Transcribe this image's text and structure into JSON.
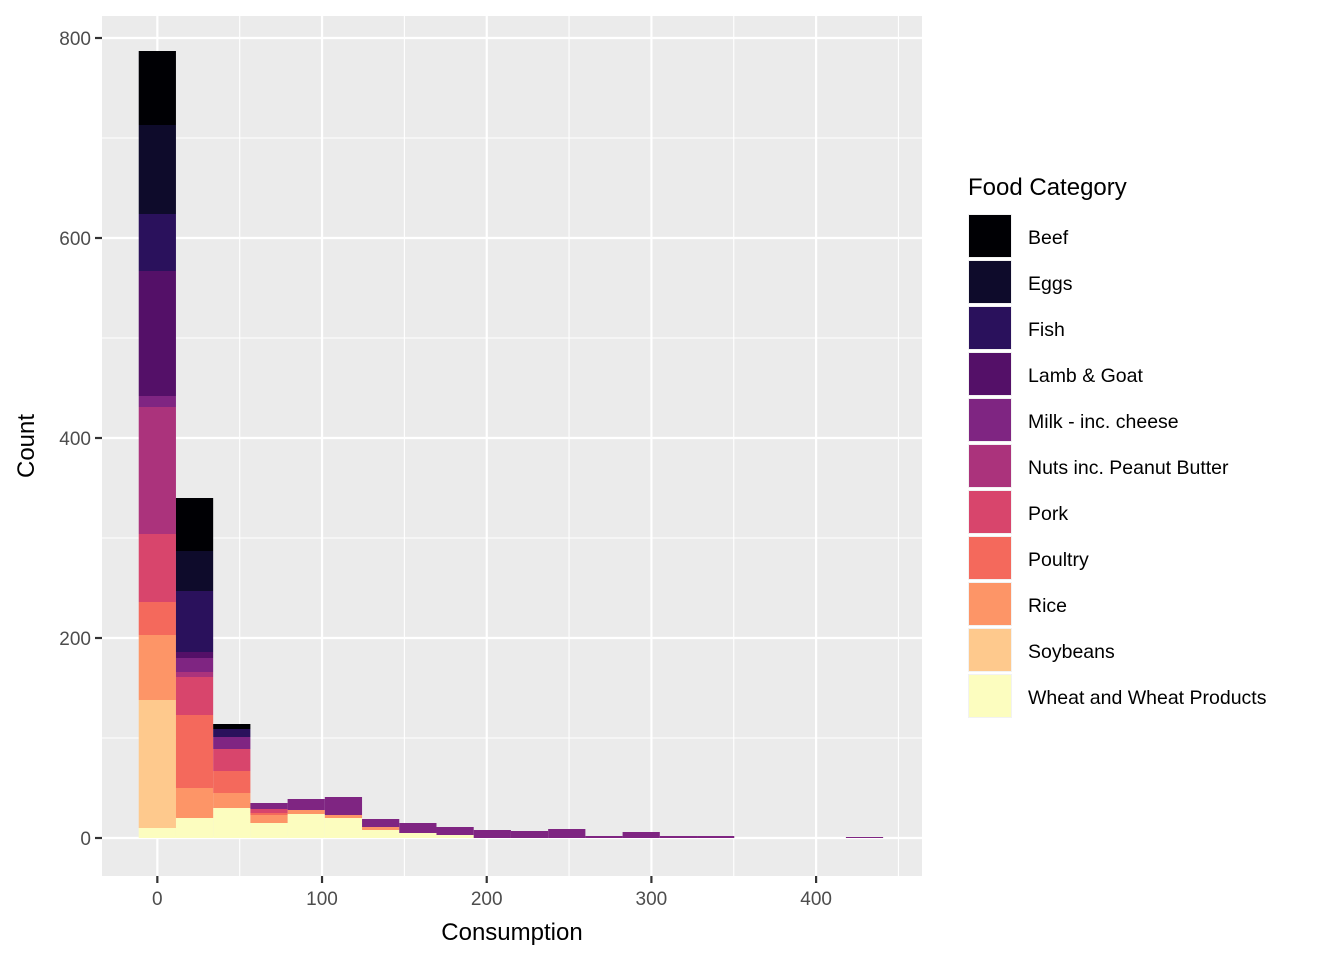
{
  "chart_data": {
    "type": "bar",
    "stacked": true,
    "histogram": true,
    "xlabel": "Consumption",
    "ylabel": "Count",
    "xlim": [
      -33.6,
      464.3
    ],
    "ylim": [
      -38,
      822
    ],
    "x_ticks": [
      0,
      100,
      200,
      300,
      400
    ],
    "y_ticks": [
      0,
      200,
      400,
      600,
      800
    ],
    "grid": true,
    "legend_title": "Food Category",
    "legend_position": "right",
    "bin_edges": [
      -11.3,
      11.3,
      33.9,
      56.5,
      79.1,
      101.7,
      124.3,
      146.9,
      169.5,
      192.1,
      214.7,
      237.3,
      259.9,
      282.5,
      305.1,
      327.7,
      350.3,
      372.9,
      395.5,
      418.1,
      440.7
    ],
    "series": [
      {
        "name": "Wheat and Wheat Products",
        "color": "#FCFDBF",
        "values": [
          10,
          20,
          30,
          15,
          24,
          20,
          8,
          5,
          3,
          0,
          0,
          0,
          0,
          0,
          0,
          0,
          0,
          0,
          0,
          0
        ]
      },
      {
        "name": "Soybeans",
        "color": "#FEC98D",
        "values": [
          128,
          0,
          0,
          0,
          0,
          0,
          0,
          0,
          0,
          0,
          0,
          0,
          0,
          0,
          0,
          0,
          0,
          0,
          0,
          0
        ]
      },
      {
        "name": "Rice",
        "color": "#FD9567",
        "values": [
          65,
          30,
          15,
          8,
          4,
          3,
          3,
          0,
          0,
          0,
          0,
          0,
          0,
          0,
          0,
          0,
          0,
          0,
          0,
          0
        ]
      },
      {
        "name": "Poultry",
        "color": "#F4695C",
        "values": [
          33,
          73,
          22,
          2,
          0,
          0,
          0,
          0,
          0,
          0,
          0,
          0,
          0,
          0,
          0,
          0,
          0,
          0,
          0,
          0
        ]
      },
      {
        "name": "Pork",
        "color": "#D8456C",
        "values": [
          68,
          38,
          22,
          4,
          0,
          0,
          0,
          0,
          0,
          0,
          0,
          0,
          0,
          0,
          0,
          0,
          0,
          0,
          0,
          0
        ]
      },
      {
        "name": "Nuts inc. Peanut Butter",
        "color": "#AB337C",
        "values": [
          127,
          5,
          0,
          0,
          0,
          0,
          0,
          0,
          0,
          0,
          0,
          0,
          0,
          0,
          0,
          0,
          0,
          0,
          0,
          0
        ]
      },
      {
        "name": "Milk - inc. cheese",
        "color": "#7F2582",
        "values": [
          11,
          14,
          12,
          6,
          11,
          18,
          8,
          10,
          8,
          8,
          7,
          9,
          2,
          6,
          2,
          2,
          0,
          0,
          0,
          1
        ]
      },
      {
        "name": "Lamb & Goat",
        "color": "#541068",
        "values": [
          125,
          6,
          0,
          0,
          0,
          0,
          0,
          0,
          0,
          0,
          0,
          0,
          0,
          0,
          0,
          0,
          0,
          0,
          0,
          0
        ]
      },
      {
        "name": "Fish",
        "color": "#2A115C",
        "values": [
          57,
          61,
          8,
          0,
          0,
          0,
          0,
          0,
          0,
          0,
          0,
          0,
          0,
          0,
          0,
          0,
          0,
          0,
          0,
          0
        ]
      },
      {
        "name": "Eggs",
        "color": "#0E0B2B",
        "values": [
          89,
          40,
          0,
          0,
          0,
          0,
          0,
          0,
          0,
          0,
          0,
          0,
          0,
          0,
          0,
          0,
          0,
          0,
          0,
          0
        ]
      },
      {
        "name": "Beef",
        "color": "#000004",
        "values": [
          74,
          53,
          5,
          0,
          0,
          0,
          0,
          0,
          0,
          0,
          0,
          0,
          0,
          0,
          0,
          0,
          0,
          0,
          0,
          0
        ]
      }
    ]
  }
}
